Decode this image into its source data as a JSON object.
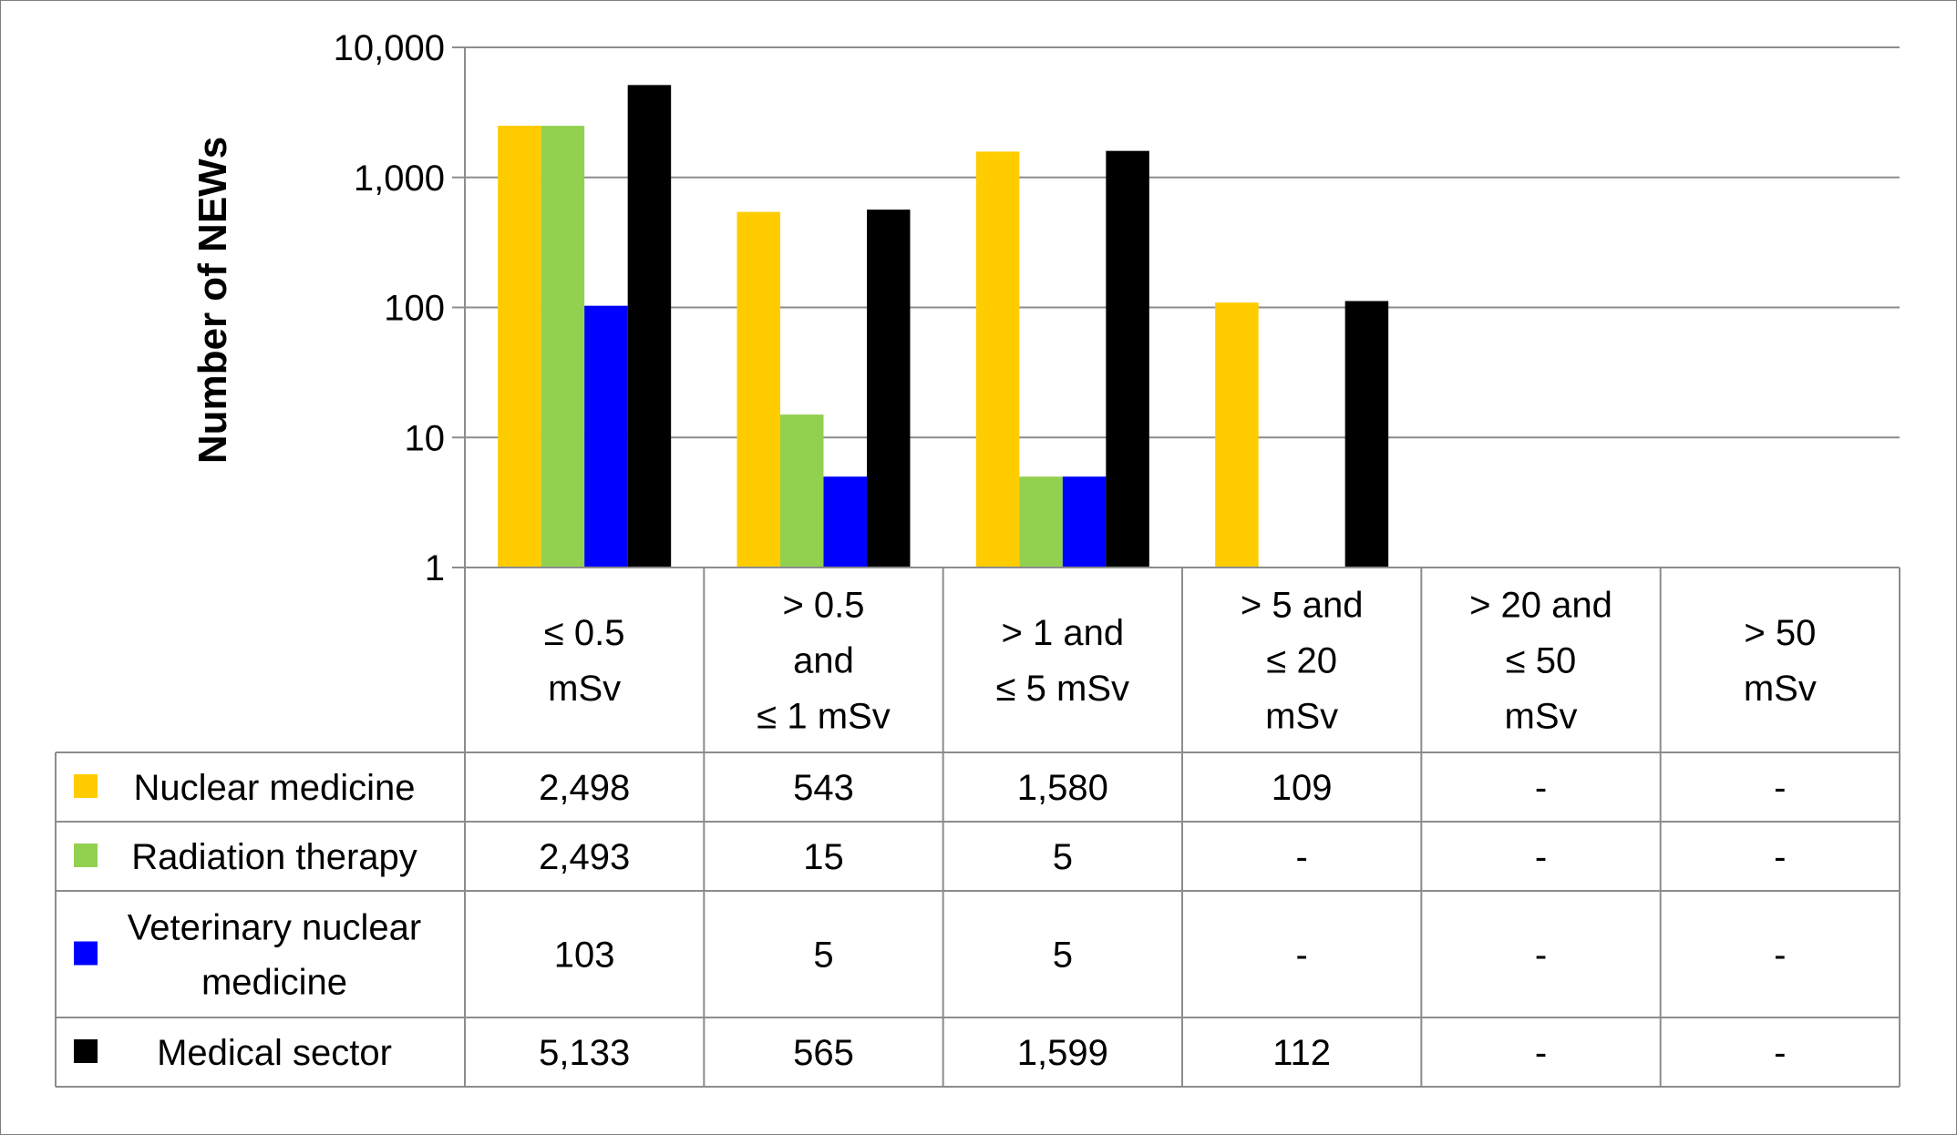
{
  "chart_data": {
    "type": "bar",
    "ylabel": "Number of NEWs",
    "yscale": "log",
    "ylim": [
      1,
      10000
    ],
    "yticks": [
      {
        "value": 1,
        "label": "1"
      },
      {
        "value": 10,
        "label": "10"
      },
      {
        "value": 100,
        "label": "100"
      },
      {
        "value": 1000,
        "label": "1,000"
      },
      {
        "value": 10000,
        "label": "10,000"
      }
    ],
    "grid": true,
    "categories": [
      [
        "≤ 0.5",
        "mSv"
      ],
      [
        "> 0.5",
        "and",
        "≤ 1 mSv"
      ],
      [
        "> 1 and",
        "≤ 5 mSv"
      ],
      [
        "> 5 and",
        "≤ 20",
        "mSv"
      ],
      [
        "> 20 and",
        "≤ 50",
        "mSv"
      ],
      [
        "> 50",
        "mSv"
      ]
    ],
    "series": [
      {
        "name": [
          "Nuclear medicine"
        ],
        "color": "#FFCC00",
        "values": [
          2498,
          543,
          1580,
          109,
          null,
          null
        ],
        "table": [
          "2,498",
          "543",
          "1,580",
          "109",
          "-",
          "-"
        ]
      },
      {
        "name": [
          "Radiation therapy"
        ],
        "color": "#92D050",
        "values": [
          2493,
          15,
          5,
          null,
          null,
          null
        ],
        "table": [
          "2,493",
          "15",
          "5",
          "-",
          "-",
          "-"
        ]
      },
      {
        "name": [
          "Veterinary nuclear",
          "medicine"
        ],
        "color": "#0000FF",
        "values": [
          103,
          5,
          5,
          null,
          null,
          null
        ],
        "table": [
          "103",
          "5",
          "5",
          "-",
          "-",
          "-"
        ]
      },
      {
        "name": [
          "Medical sector"
        ],
        "color": "#000000",
        "values": [
          5133,
          565,
          1599,
          112,
          null,
          null
        ],
        "table": [
          "5,133",
          "565",
          "1,599",
          "112",
          "-",
          "-"
        ]
      }
    ]
  }
}
